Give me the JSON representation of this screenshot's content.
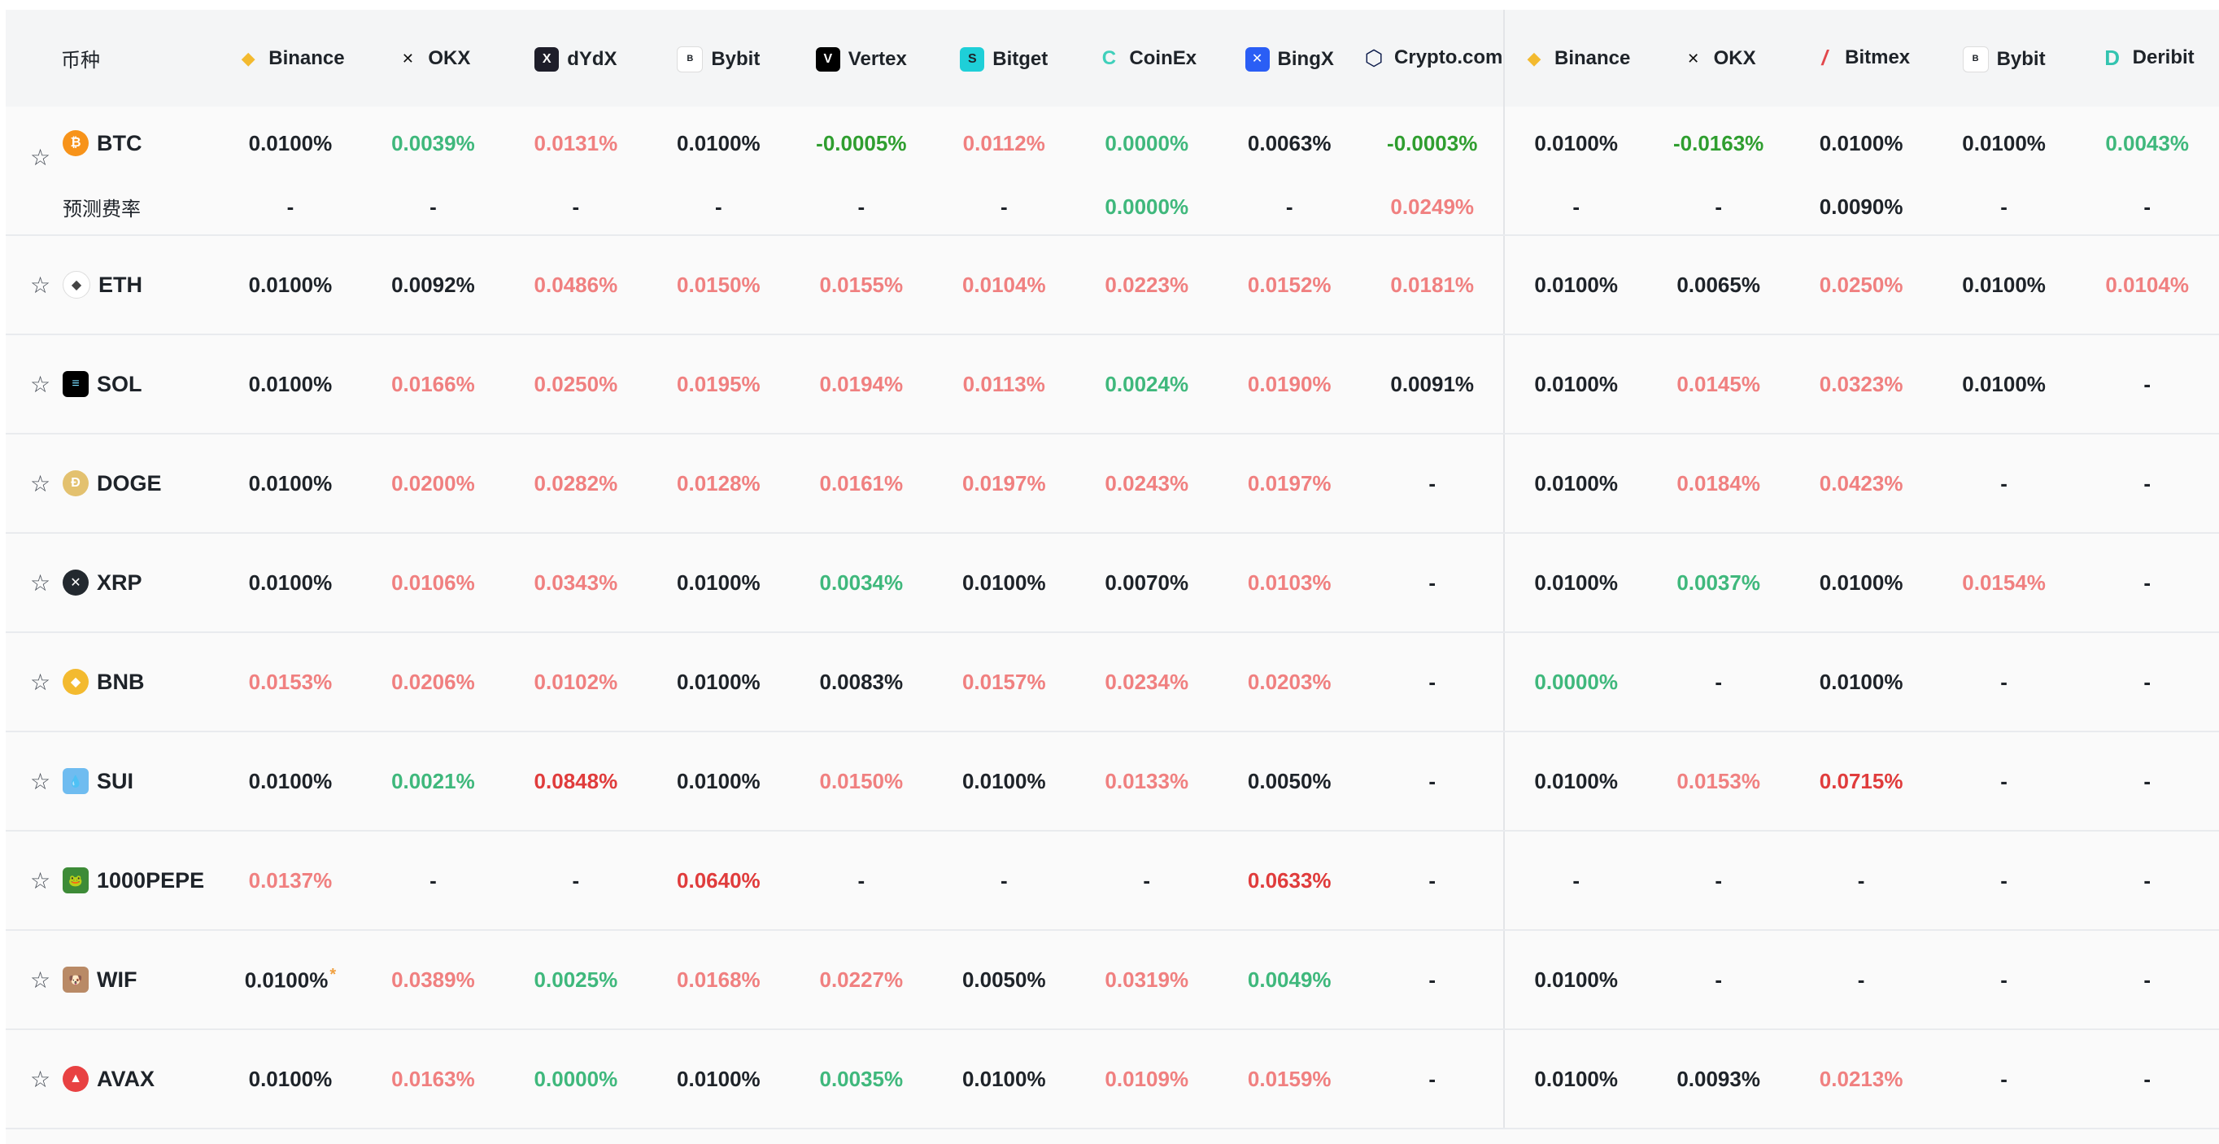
{
  "header": {
    "coin_col": "币种",
    "exchanges": [
      {
        "name": "Binance",
        "icon": "binance-icon",
        "color": "#f3ba2f"
      },
      {
        "name": "OKX",
        "icon": "okx-icon",
        "color": "#000000"
      },
      {
        "name": "dYdX",
        "icon": "dydx-icon",
        "color": "#1e1e2a"
      },
      {
        "name": "Bybit",
        "icon": "bybit-icon",
        "color": "#1e2329"
      },
      {
        "name": "Vertex",
        "icon": "vertex-icon",
        "color": "#000000"
      },
      {
        "name": "Bitget",
        "icon": "bitget-icon",
        "color": "#1ecfd8"
      },
      {
        "name": "CoinEx",
        "icon": "coinex-icon",
        "color": "#3fd0bb"
      },
      {
        "name": "BingX",
        "icon": "bingx-icon",
        "color": "#2a5ef5"
      },
      {
        "name": "Crypto.com",
        "icon": "cryptocom-icon",
        "color": "#0b1a4a"
      },
      {
        "name": "Binance",
        "icon": "binance-icon",
        "color": "#f3ba2f"
      },
      {
        "name": "OKX",
        "icon": "okx-icon",
        "color": "#000000"
      },
      {
        "name": "Bitmex",
        "icon": "bitmex-icon",
        "color": "#e2474b"
      },
      {
        "name": "Bybit",
        "icon": "bybit-icon",
        "color": "#1e2329"
      },
      {
        "name": "Deribit",
        "icon": "deribit-icon",
        "color": "#33c4b0"
      }
    ]
  },
  "colors": {
    "positive": "#f08080",
    "negative": "#3fb87c",
    "hot": "#e03c3c",
    "neutral": "#1e2329"
  },
  "btc": {
    "symbol": "BTC",
    "icon": "bitcoin-icon",
    "icon_color": "#f7931a",
    "rates": [
      {
        "v": "0.0100%",
        "c": "neu"
      },
      {
        "v": "0.0039%",
        "c": "neg"
      },
      {
        "v": "0.0131%",
        "c": "pos"
      },
      {
        "v": "0.0100%",
        "c": "neu"
      },
      {
        "v": "-0.0005%",
        "c": "neg2"
      },
      {
        "v": "0.0112%",
        "c": "pos"
      },
      {
        "v": "0.0000%",
        "c": "neg"
      },
      {
        "v": "0.0063%",
        "c": "neu"
      },
      {
        "v": "-0.0003%",
        "c": "neg2"
      },
      {
        "v": "0.0100%",
        "c": "neu"
      },
      {
        "v": "-0.0163%",
        "c": "neg2"
      },
      {
        "v": "0.0100%",
        "c": "neu"
      },
      {
        "v": "0.0100%",
        "c": "neu"
      },
      {
        "v": "0.0043%",
        "c": "neg"
      }
    ],
    "predicted_label": "预测费率",
    "predicted": [
      {
        "v": "-",
        "c": "neu"
      },
      {
        "v": "-",
        "c": "neu"
      },
      {
        "v": "-",
        "c": "neu"
      },
      {
        "v": "-",
        "c": "neu"
      },
      {
        "v": "-",
        "c": "neu"
      },
      {
        "v": "-",
        "c": "neu"
      },
      {
        "v": "0.0000%",
        "c": "neg"
      },
      {
        "v": "-",
        "c": "neu"
      },
      {
        "v": "0.0249%",
        "c": "pos"
      },
      {
        "v": "-",
        "c": "neu"
      },
      {
        "v": "-",
        "c": "neu"
      },
      {
        "v": "0.0090%",
        "c": "neu"
      },
      {
        "v": "-",
        "c": "neu"
      },
      {
        "v": "-",
        "c": "neu"
      }
    ]
  },
  "rows": [
    {
      "symbol": "ETH",
      "icon": "ethereum-icon",
      "icon_color": "#ffffff",
      "rates": [
        {
          "v": "0.0100%",
          "c": "neu"
        },
        {
          "v": "0.0092%",
          "c": "neu"
        },
        {
          "v": "0.0486%",
          "c": "pos"
        },
        {
          "v": "0.0150%",
          "c": "pos"
        },
        {
          "v": "0.0155%",
          "c": "pos"
        },
        {
          "v": "0.0104%",
          "c": "pos"
        },
        {
          "v": "0.0223%",
          "c": "pos"
        },
        {
          "v": "0.0152%",
          "c": "pos"
        },
        {
          "v": "0.0181%",
          "c": "pos"
        },
        {
          "v": "0.0100%",
          "c": "neu"
        },
        {
          "v": "0.0065%",
          "c": "neu"
        },
        {
          "v": "0.0250%",
          "c": "pos"
        },
        {
          "v": "0.0100%",
          "c": "neu"
        },
        {
          "v": "0.0104%",
          "c": "pos"
        }
      ]
    },
    {
      "symbol": "SOL",
      "icon": "solana-icon",
      "icon_color": "#000000",
      "rates": [
        {
          "v": "0.0100%",
          "c": "neu"
        },
        {
          "v": "0.0166%",
          "c": "pos"
        },
        {
          "v": "0.0250%",
          "c": "pos"
        },
        {
          "v": "0.0195%",
          "c": "pos"
        },
        {
          "v": "0.0194%",
          "c": "pos"
        },
        {
          "v": "0.0113%",
          "c": "pos"
        },
        {
          "v": "0.0024%",
          "c": "neg"
        },
        {
          "v": "0.0190%",
          "c": "pos"
        },
        {
          "v": "0.0091%",
          "c": "neu"
        },
        {
          "v": "0.0100%",
          "c": "neu"
        },
        {
          "v": "0.0145%",
          "c": "pos"
        },
        {
          "v": "0.0323%",
          "c": "pos"
        },
        {
          "v": "0.0100%",
          "c": "neu"
        },
        {
          "v": "-",
          "c": "neu"
        }
      ]
    },
    {
      "symbol": "DOGE",
      "icon": "dogecoin-icon",
      "icon_color": "#e3c16f",
      "rates": [
        {
          "v": "0.0100%",
          "c": "neu"
        },
        {
          "v": "0.0200%",
          "c": "pos"
        },
        {
          "v": "0.0282%",
          "c": "pos"
        },
        {
          "v": "0.0128%",
          "c": "pos"
        },
        {
          "v": "0.0161%",
          "c": "pos"
        },
        {
          "v": "0.0197%",
          "c": "pos"
        },
        {
          "v": "0.0243%",
          "c": "pos"
        },
        {
          "v": "0.0197%",
          "c": "pos"
        },
        {
          "v": "-",
          "c": "neu"
        },
        {
          "v": "0.0100%",
          "c": "neu"
        },
        {
          "v": "0.0184%",
          "c": "pos"
        },
        {
          "v": "0.0423%",
          "c": "pos"
        },
        {
          "v": "-",
          "c": "neu"
        },
        {
          "v": "-",
          "c": "neu"
        }
      ]
    },
    {
      "symbol": "XRP",
      "icon": "xrp-icon",
      "icon_color": "#23292f",
      "rates": [
        {
          "v": "0.0100%",
          "c": "neu"
        },
        {
          "v": "0.0106%",
          "c": "pos"
        },
        {
          "v": "0.0343%",
          "c": "pos"
        },
        {
          "v": "0.0100%",
          "c": "neu"
        },
        {
          "v": "0.0034%",
          "c": "neg"
        },
        {
          "v": "0.0100%",
          "c": "neu"
        },
        {
          "v": "0.0070%",
          "c": "neu"
        },
        {
          "v": "0.0103%",
          "c": "pos"
        },
        {
          "v": "-",
          "c": "neu"
        },
        {
          "v": "0.0100%",
          "c": "neu"
        },
        {
          "v": "0.0037%",
          "c": "neg"
        },
        {
          "v": "0.0100%",
          "c": "neu"
        },
        {
          "v": "0.0154%",
          "c": "pos"
        },
        {
          "v": "-",
          "c": "neu"
        }
      ]
    },
    {
      "symbol": "BNB",
      "icon": "bnb-icon",
      "icon_color": "#f3ba2f",
      "rates": [
        {
          "v": "0.0153%",
          "c": "pos"
        },
        {
          "v": "0.0206%",
          "c": "pos"
        },
        {
          "v": "0.0102%",
          "c": "pos"
        },
        {
          "v": "0.0100%",
          "c": "neu"
        },
        {
          "v": "0.0083%",
          "c": "neu"
        },
        {
          "v": "0.0157%",
          "c": "pos"
        },
        {
          "v": "0.0234%",
          "c": "pos"
        },
        {
          "v": "0.0203%",
          "c": "pos"
        },
        {
          "v": "-",
          "c": "neu"
        },
        {
          "v": "0.0000%",
          "c": "neg"
        },
        {
          "v": "-",
          "c": "neu"
        },
        {
          "v": "0.0100%",
          "c": "neu"
        },
        {
          "v": "-",
          "c": "neu"
        },
        {
          "v": "-",
          "c": "neu"
        }
      ]
    },
    {
      "symbol": "SUI",
      "icon": "sui-icon",
      "icon_color": "#6fbcf0",
      "rates": [
        {
          "v": "0.0100%",
          "c": "neu"
        },
        {
          "v": "0.0021%",
          "c": "neg"
        },
        {
          "v": "0.0848%",
          "c": "hot"
        },
        {
          "v": "0.0100%",
          "c": "neu"
        },
        {
          "v": "0.0150%",
          "c": "pos"
        },
        {
          "v": "0.0100%",
          "c": "neu"
        },
        {
          "v": "0.0133%",
          "c": "pos"
        },
        {
          "v": "0.0050%",
          "c": "neu"
        },
        {
          "v": "-",
          "c": "neu"
        },
        {
          "v": "0.0100%",
          "c": "neu"
        },
        {
          "v": "0.0153%",
          "c": "pos"
        },
        {
          "v": "0.0715%",
          "c": "hot"
        },
        {
          "v": "-",
          "c": "neu"
        },
        {
          "v": "-",
          "c": "neu"
        }
      ]
    },
    {
      "symbol": "1000PEPE",
      "icon": "pepe-icon",
      "icon_color": "#3d8b37",
      "rates": [
        {
          "v": "0.0137%",
          "c": "pos"
        },
        {
          "v": "-",
          "c": "neu"
        },
        {
          "v": "-",
          "c": "neu"
        },
        {
          "v": "0.0640%",
          "c": "hot"
        },
        {
          "v": "-",
          "c": "neu"
        },
        {
          "v": "-",
          "c": "neu"
        },
        {
          "v": "-",
          "c": "neu"
        },
        {
          "v": "0.0633%",
          "c": "hot"
        },
        {
          "v": "-",
          "c": "neu"
        },
        {
          "v": "-",
          "c": "neu"
        },
        {
          "v": "-",
          "c": "neu"
        },
        {
          "v": "-",
          "c": "neu"
        },
        {
          "v": "-",
          "c": "neu"
        },
        {
          "v": "-",
          "c": "neu"
        }
      ]
    },
    {
      "symbol": "WIF",
      "icon": "wif-icon",
      "icon_color": "#b98a66",
      "rates": [
        {
          "v": "0.0100%",
          "c": "neu",
          "mark": "*"
        },
        {
          "v": "0.0389%",
          "c": "pos"
        },
        {
          "v": "0.0025%",
          "c": "neg"
        },
        {
          "v": "0.0168%",
          "c": "pos"
        },
        {
          "v": "0.0227%",
          "c": "pos"
        },
        {
          "v": "0.0050%",
          "c": "neu"
        },
        {
          "v": "0.0319%",
          "c": "pos"
        },
        {
          "v": "0.0049%",
          "c": "neg"
        },
        {
          "v": "-",
          "c": "neu"
        },
        {
          "v": "0.0100%",
          "c": "neu"
        },
        {
          "v": "-",
          "c": "neu"
        },
        {
          "v": "-",
          "c": "neu"
        },
        {
          "v": "-",
          "c": "neu"
        },
        {
          "v": "-",
          "c": "neu"
        }
      ]
    },
    {
      "symbol": "AVAX",
      "icon": "avalanche-icon",
      "icon_color": "#e84142",
      "rates": [
        {
          "v": "0.0100%",
          "c": "neu"
        },
        {
          "v": "0.0163%",
          "c": "pos"
        },
        {
          "v": "0.0000%",
          "c": "neg"
        },
        {
          "v": "0.0100%",
          "c": "neu"
        },
        {
          "v": "0.0035%",
          "c": "neg"
        },
        {
          "v": "0.0100%",
          "c": "neu"
        },
        {
          "v": "0.0109%",
          "c": "pos"
        },
        {
          "v": "0.0159%",
          "c": "pos"
        },
        {
          "v": "-",
          "c": "neu"
        },
        {
          "v": "0.0100%",
          "c": "neu"
        },
        {
          "v": "0.0093%",
          "c": "neu"
        },
        {
          "v": "0.0213%",
          "c": "pos"
        },
        {
          "v": "-",
          "c": "neu"
        },
        {
          "v": "-",
          "c": "neu"
        }
      ]
    }
  ]
}
